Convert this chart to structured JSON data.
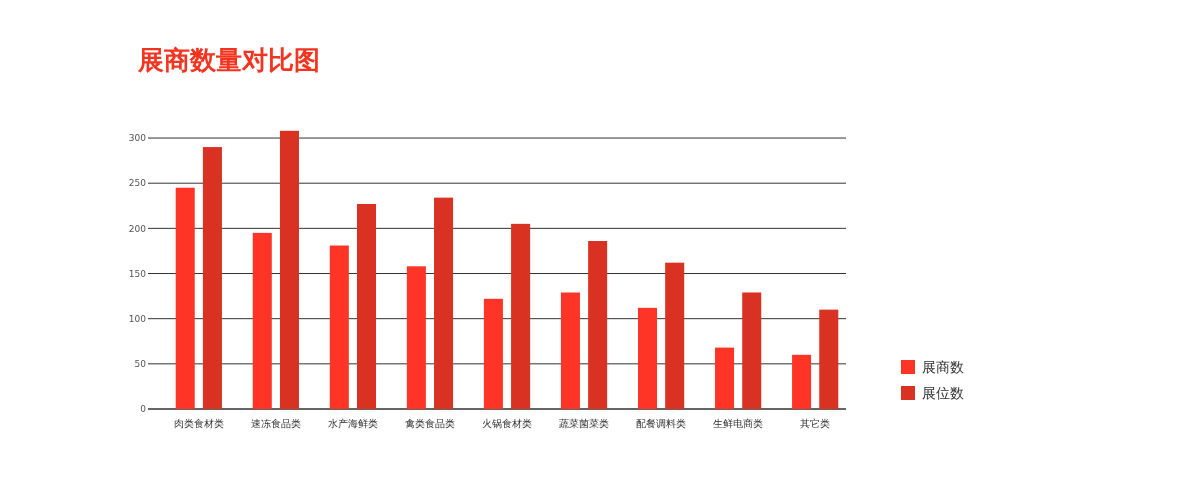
{
  "chart_data": {
    "type": "bar",
    "title": "展商数量对比图",
    "categories": [
      "肉类食材类",
      "速冻食品类",
      "水产海鲜类",
      "禽类食品类",
      "火锅食材类",
      "蔬菜菌菜类",
      "配餐调料类",
      "生鲜电商类",
      "其它类"
    ],
    "series": [
      {
        "name": "展商数",
        "color": "#fe3526",
        "values": [
          245,
          195,
          181,
          158,
          122,
          129,
          112,
          68,
          60
        ]
      },
      {
        "name": "展位数",
        "color": "#d93222",
        "values": [
          290,
          308,
          227,
          234,
          205,
          186,
          162,
          129,
          110
        ]
      }
    ],
    "ylim": [
      0,
      310
    ],
    "yticks": [
      0,
      50,
      100,
      150,
      200,
      250,
      300
    ],
    "grid": "y",
    "legend": "right"
  }
}
